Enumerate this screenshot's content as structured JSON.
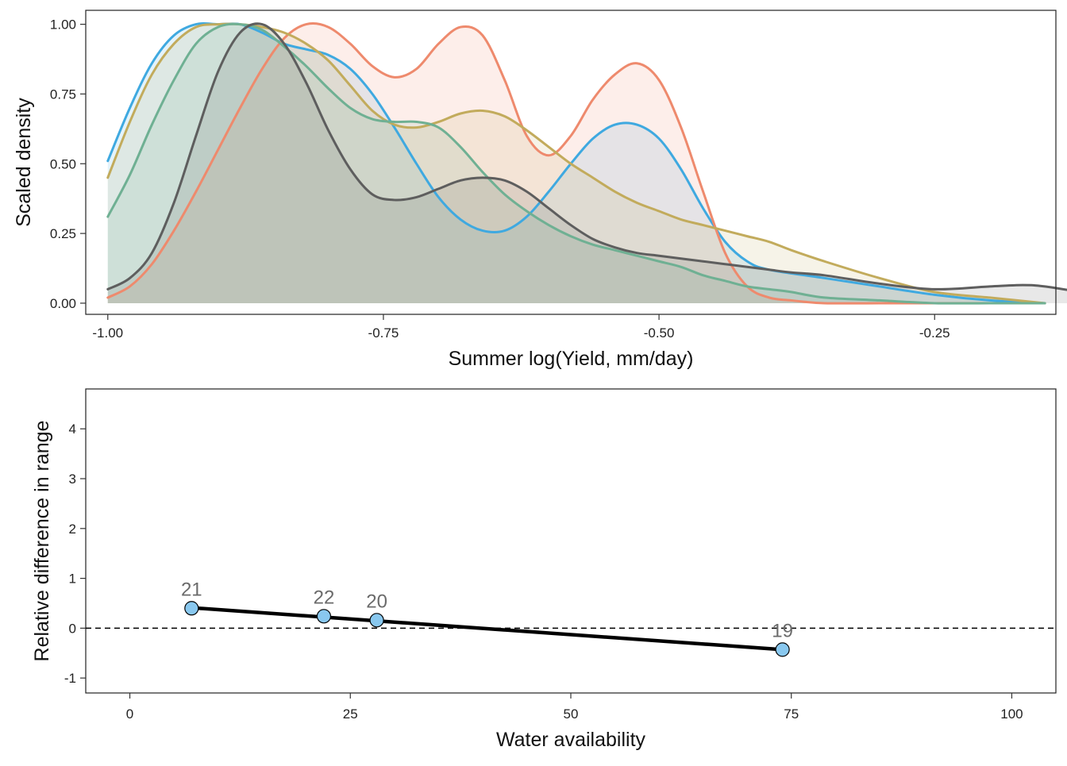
{
  "chart_data": [
    {
      "type": "area",
      "title": "",
      "xlabel": "Summer log(Yield, mm/day)",
      "ylabel": "Scaled density",
      "xlim": [
        -1.02,
        -0.14
      ],
      "ylim": [
        -0.04,
        1.05
      ],
      "xticks": [
        -1.0,
        -0.75,
        -0.5,
        -0.25
      ],
      "xtick_labels": [
        "-1.00",
        "-0.75",
        "-0.50",
        "-0.25"
      ],
      "yticks": [
        0,
        0.25,
        0.5,
        0.75,
        1.0
      ],
      "ytick_labels": [
        "0.00",
        "0.25",
        "0.50",
        "0.75",
        "1.00"
      ],
      "grid": false,
      "series": [
        {
          "name": "blue",
          "color": "#3fa9e0",
          "x": [
            -1.0,
            -0.98,
            -0.96,
            -0.94,
            -0.92,
            -0.9,
            -0.88,
            -0.86,
            -0.84,
            -0.82,
            -0.8,
            -0.78,
            -0.76,
            -0.74,
            -0.72,
            -0.7,
            -0.68,
            -0.66,
            -0.64,
            -0.62,
            -0.6,
            -0.58,
            -0.56,
            -0.54,
            -0.52,
            -0.5,
            -0.48,
            -0.46,
            -0.44,
            -0.42,
            -0.4,
            -0.35,
            -0.3,
            -0.25,
            -0.2,
            -0.15
          ],
          "values": [
            0.51,
            0.7,
            0.86,
            0.96,
            1.0,
            1.0,
            1.0,
            0.97,
            0.93,
            0.91,
            0.89,
            0.84,
            0.75,
            0.63,
            0.5,
            0.38,
            0.3,
            0.26,
            0.26,
            0.31,
            0.4,
            0.5,
            0.59,
            0.64,
            0.64,
            0.59,
            0.48,
            0.34,
            0.22,
            0.15,
            0.12,
            0.09,
            0.06,
            0.03,
            0.01,
            0.0
          ]
        },
        {
          "name": "salmon",
          "color": "#ee8a6d",
          "x": [
            -1.0,
            -0.98,
            -0.96,
            -0.94,
            -0.92,
            -0.9,
            -0.88,
            -0.86,
            -0.84,
            -0.82,
            -0.8,
            -0.78,
            -0.76,
            -0.74,
            -0.72,
            -0.7,
            -0.68,
            -0.66,
            -0.64,
            -0.62,
            -0.6,
            -0.58,
            -0.56,
            -0.54,
            -0.52,
            -0.5,
            -0.48,
            -0.46,
            -0.44,
            -0.42,
            -0.4,
            -0.38,
            -0.35,
            -0.3,
            -0.25,
            -0.2,
            -0.15
          ],
          "values": [
            0.02,
            0.06,
            0.14,
            0.26,
            0.4,
            0.55,
            0.7,
            0.84,
            0.95,
            1.0,
            0.99,
            0.93,
            0.85,
            0.81,
            0.84,
            0.93,
            0.99,
            0.96,
            0.8,
            0.6,
            0.53,
            0.6,
            0.73,
            0.82,
            0.86,
            0.8,
            0.63,
            0.4,
            0.18,
            0.06,
            0.02,
            0.01,
            0.0,
            0.0,
            0.0,
            0.0,
            0.0
          ]
        },
        {
          "name": "olive",
          "color": "#c2ab5c",
          "x": [
            -1.0,
            -0.98,
            -0.96,
            -0.94,
            -0.92,
            -0.9,
            -0.88,
            -0.86,
            -0.84,
            -0.82,
            -0.8,
            -0.78,
            -0.76,
            -0.74,
            -0.72,
            -0.7,
            -0.68,
            -0.66,
            -0.64,
            -0.62,
            -0.6,
            -0.58,
            -0.56,
            -0.54,
            -0.52,
            -0.5,
            -0.48,
            -0.46,
            -0.44,
            -0.42,
            -0.4,
            -0.38,
            -0.35,
            -0.3,
            -0.25,
            -0.2,
            -0.15
          ],
          "values": [
            0.45,
            0.65,
            0.82,
            0.93,
            0.99,
            1.0,
            1.0,
            0.99,
            0.97,
            0.93,
            0.87,
            0.78,
            0.69,
            0.64,
            0.63,
            0.65,
            0.68,
            0.69,
            0.67,
            0.62,
            0.56,
            0.5,
            0.45,
            0.4,
            0.36,
            0.33,
            0.3,
            0.28,
            0.26,
            0.24,
            0.22,
            0.19,
            0.15,
            0.09,
            0.04,
            0.02,
            0.0
          ]
        },
        {
          "name": "green",
          "color": "#6fb093",
          "x": [
            -1.0,
            -0.98,
            -0.96,
            -0.94,
            -0.92,
            -0.9,
            -0.88,
            -0.86,
            -0.84,
            -0.82,
            -0.8,
            -0.78,
            -0.76,
            -0.74,
            -0.72,
            -0.7,
            -0.68,
            -0.66,
            -0.64,
            -0.62,
            -0.6,
            -0.58,
            -0.56,
            -0.54,
            -0.52,
            -0.5,
            -0.48,
            -0.46,
            -0.44,
            -0.42,
            -0.4,
            -0.38,
            -0.35,
            -0.3,
            -0.25,
            -0.2,
            -0.15
          ],
          "values": [
            0.31,
            0.46,
            0.64,
            0.8,
            0.93,
            0.99,
            1.0,
            0.98,
            0.92,
            0.85,
            0.77,
            0.7,
            0.66,
            0.65,
            0.65,
            0.63,
            0.56,
            0.47,
            0.39,
            0.33,
            0.28,
            0.24,
            0.21,
            0.19,
            0.17,
            0.15,
            0.13,
            0.1,
            0.08,
            0.06,
            0.05,
            0.04,
            0.02,
            0.01,
            0.0,
            0.0,
            0.0
          ]
        },
        {
          "name": "dark grey",
          "color": "#5e5e5e",
          "x": [
            -1.0,
            -0.98,
            -0.96,
            -0.94,
            -0.92,
            -0.9,
            -0.88,
            -0.86,
            -0.84,
            -0.82,
            -0.8,
            -0.78,
            -0.76,
            -0.74,
            -0.72,
            -0.7,
            -0.68,
            -0.66,
            -0.64,
            -0.62,
            -0.6,
            -0.58,
            -0.56,
            -0.54,
            -0.52,
            -0.5,
            -0.48,
            -0.46,
            -0.44,
            -0.42,
            -0.4,
            -0.38,
            -0.35,
            -0.3,
            -0.25,
            -0.2,
            -0.17,
            -0.15,
            -0.11
          ],
          "values": [
            0.05,
            0.09,
            0.18,
            0.36,
            0.6,
            0.83,
            0.97,
            1.0,
            0.93,
            0.79,
            0.62,
            0.48,
            0.39,
            0.37,
            0.38,
            0.41,
            0.44,
            0.45,
            0.44,
            0.4,
            0.34,
            0.28,
            0.23,
            0.2,
            0.18,
            0.17,
            0.16,
            0.15,
            0.14,
            0.13,
            0.12,
            0.11,
            0.1,
            0.07,
            0.05,
            0.06,
            0.065,
            0.06,
            0.035
          ]
        }
      ]
    },
    {
      "type": "line",
      "title": "",
      "xlabel": "Water availability",
      "ylabel": "Relative difference in range",
      "xlim": [
        -5,
        105
      ],
      "ylim": [
        -1.3,
        4.8
      ],
      "xticks": [
        0,
        25,
        50,
        75,
        100
      ],
      "xtick_labels": [
        "0",
        "25",
        "50",
        "75",
        "100"
      ],
      "yticks": [
        -1,
        0,
        1,
        2,
        3,
        4
      ],
      "ytick_labels": [
        "-1",
        "0",
        "1",
        "2",
        "3",
        "4"
      ],
      "grid": false,
      "reference_line": {
        "y": 0,
        "style": "dashed",
        "color": "#000000"
      },
      "series": [
        {
          "name": "fit",
          "color": "#000000",
          "x": [
            7,
            74
          ],
          "values": [
            0.41,
            -0.43
          ]
        }
      ],
      "points": {
        "x": [
          7,
          22,
          28,
          74
        ],
        "values": [
          0.4,
          0.24,
          0.16,
          -0.43
        ],
        "labels": [
          "21",
          "22",
          "20",
          "19"
        ],
        "fill": "#89c8ef",
        "stroke": "#000000"
      }
    }
  ]
}
